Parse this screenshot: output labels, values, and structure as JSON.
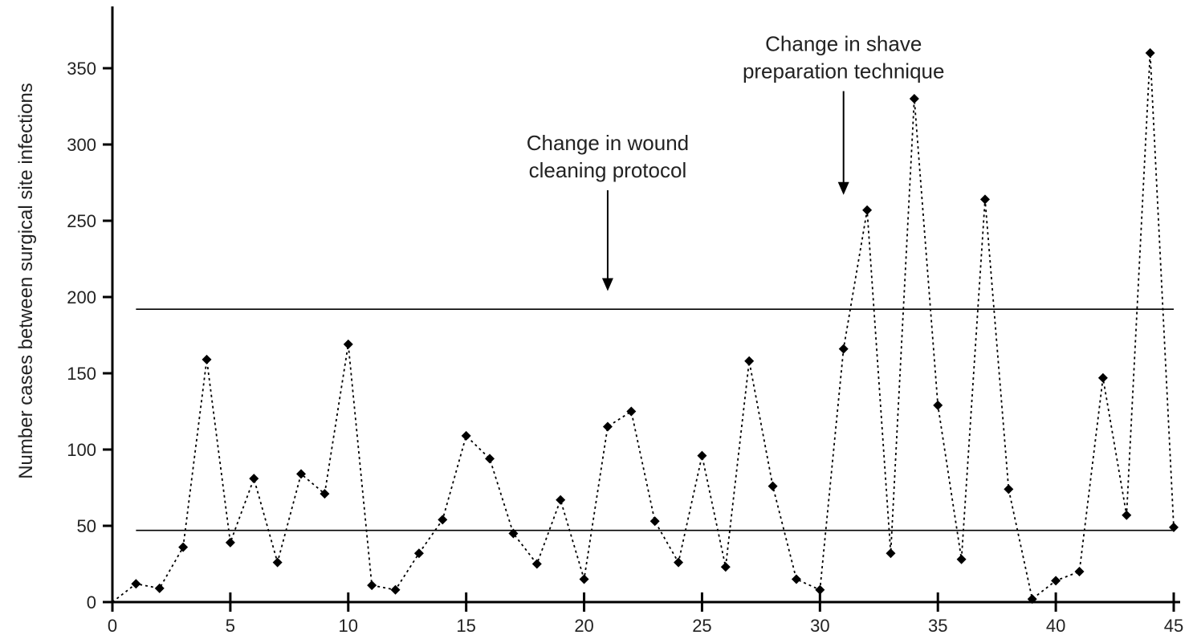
{
  "chart_data": {
    "type": "line",
    "title": "",
    "xlabel": "",
    "ylabel": "Number cases between surgical site infections",
    "xlim": [
      0,
      45
    ],
    "ylim": [
      0,
      380
    ],
    "x_ticks": [
      0,
      5,
      10,
      15,
      20,
      25,
      30,
      35,
      40,
      45
    ],
    "y_ticks": [
      0,
      50,
      100,
      150,
      200,
      250,
      300,
      350
    ],
    "grid": false,
    "legend": "none",
    "series": [
      {
        "line_style": "dotted",
        "marker": "diamond",
        "color": "#000000",
        "x": [
          0,
          1,
          2,
          3,
          4,
          5,
          6,
          7,
          8,
          9,
          10,
          11,
          12,
          13,
          14,
          15,
          16,
          17,
          18,
          19,
          20,
          21,
          22,
          23,
          24,
          25,
          26,
          27,
          28,
          29,
          30,
          31,
          32,
          33,
          34,
          35,
          36,
          37,
          38,
          39,
          40,
          41,
          42,
          43,
          44,
          45
        ],
        "y": [
          0,
          12,
          9,
          36,
          159,
          39,
          81,
          26,
          84,
          71,
          169,
          11,
          8,
          32,
          54,
          109,
          94,
          45,
          25,
          67,
          15,
          115,
          125,
          53,
          26,
          96,
          23,
          158,
          76,
          15,
          8,
          166,
          257,
          32,
          330,
          129,
          28,
          264,
          74,
          2,
          14,
          20,
          147,
          57,
          360,
          49
        ]
      }
    ],
    "reference_lines": [
      {
        "y": 192,
        "x_start": 1,
        "x_end": 45
      },
      {
        "y": 47,
        "x_start": 1,
        "x_end": 45
      }
    ],
    "annotations": [
      {
        "lines": [
          "Change in wound",
          "cleaning protocol"
        ],
        "x": 21,
        "arrow_from_y": 270,
        "arrow_to_y": 205
      },
      {
        "lines": [
          "Change in shave",
          "preparation technique"
        ],
        "x": 31,
        "arrow_from_y": 335,
        "arrow_to_y": 268
      }
    ]
  }
}
